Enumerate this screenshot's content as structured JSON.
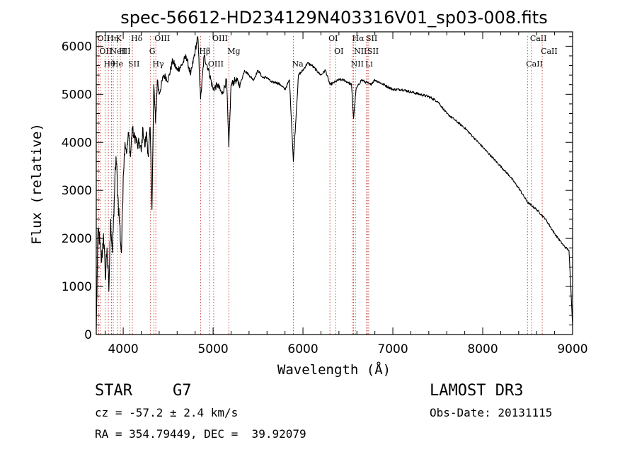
{
  "chart_data": {
    "type": "line",
    "title": "spec-56612-HD234129N403316V01_sp03-008.fits",
    "xlabel": "Wavelength (Å)",
    "ylabel": "Flux (relative)",
    "xlim": [
      3700,
      9000
    ],
    "ylim": [
      0,
      6300
    ],
    "xticks": [
      {
        "value": 4000,
        "label": "4000"
      },
      {
        "value": 5000,
        "label": "5000"
      },
      {
        "value": 6000,
        "label": "6000"
      },
      {
        "value": 7000,
        "label": "7000"
      },
      {
        "value": 8000,
        "label": "8000"
      },
      {
        "value": 9000,
        "label": "9000"
      }
    ],
    "yticks": [
      {
        "value": 0,
        "label": "0"
      },
      {
        "value": 1000,
        "label": "1000"
      },
      {
        "value": 2000,
        "label": "2000"
      },
      {
        "value": 3000,
        "label": "3000"
      },
      {
        "value": 4000,
        "label": "4000"
      },
      {
        "value": 5000,
        "label": "5000"
      },
      {
        "value": 6000,
        "label": "6000"
      }
    ],
    "series": [
      {
        "color": "#000000",
        "x": [
          3700,
          3720,
          3740,
          3760,
          3780,
          3800,
          3820,
          3840,
          3860,
          3880,
          3900,
          3920,
          3940,
          3960,
          3980,
          4000,
          4020,
          4040,
          4060,
          4080,
          4100,
          4120,
          4140,
          4160,
          4180,
          4200,
          4220,
          4240,
          4260,
          4280,
          4300,
          4320,
          4340,
          4360,
          4380,
          4400,
          4450,
          4500,
          4550,
          4600,
          4650,
          4700,
          4750,
          4800,
          4830,
          4861,
          4900,
          4950,
          5000,
          5050,
          5100,
          5150,
          5175,
          5200,
          5250,
          5300,
          5350,
          5400,
          5450,
          5500,
          5550,
          5600,
          5650,
          5700,
          5750,
          5800,
          5850,
          5893,
          5950,
          6000,
          6050,
          6100,
          6150,
          6200,
          6250,
          6300,
          6350,
          6400,
          6450,
          6500,
          6540,
          6563,
          6590,
          6650,
          6700,
          6750,
          6800,
          6850,
          6900,
          6950,
          7000,
          7100,
          7200,
          7300,
          7400,
          7500,
          7600,
          7700,
          7800,
          7900,
          8000,
          8100,
          8200,
          8300,
          8400,
          8500,
          8600,
          8700,
          8800,
          8900,
          8960,
          9000
        ],
        "y": [
          100,
          2200,
          1900,
          1500,
          2100,
          1200,
          1800,
          900,
          2400,
          1700,
          2800,
          3700,
          2900,
          2300,
          1700,
          3300,
          4000,
          3800,
          4200,
          3700,
          4300,
          4100,
          4100,
          3900,
          4000,
          3800,
          4300,
          3900,
          4200,
          3700,
          4300,
          2600,
          5200,
          4400,
          5300,
          5000,
          5400,
          5300,
          5700,
          5500,
          5600,
          5800,
          5400,
          5900,
          6200,
          4900,
          5800,
          5500,
          5100,
          5200,
          5000,
          5300,
          3900,
          5200,
          5300,
          5200,
          5500,
          5400,
          5300,
          5500,
          5350,
          5350,
          5250,
          5250,
          5200,
          5100,
          5300,
          3600,
          5400,
          5500,
          5650,
          5600,
          5500,
          5400,
          5500,
          5200,
          5250,
          5300,
          5300,
          5250,
          5200,
          4500,
          5100,
          5300,
          5250,
          5200,
          5300,
          5250,
          5200,
          5150,
          5100,
          5100,
          5050,
          5000,
          4950,
          4850,
          4600,
          4450,
          4300,
          4100,
          3900,
          3700,
          3500,
          3300,
          3050,
          2750,
          2600,
          2400,
          2100,
          1850,
          1750,
          200
        ]
      }
    ],
    "line_markers": [
      {
        "x": 3727,
        "label": "OII"
      },
      {
        "x": 3750,
        "label": "OII"
      },
      {
        "x": 3798,
        "label": "Hθ"
      },
      {
        "x": 3835,
        "label": "Hη"
      },
      {
        "x": 3869,
        "label": "NeIII"
      },
      {
        "x": 3889,
        "label": "He"
      },
      {
        "x": 3934,
        "label": "K"
      },
      {
        "x": 3968,
        "label": "H"
      },
      {
        "x": 4071,
        "label": "SII"
      },
      {
        "x": 4102,
        "label": "Hδ"
      },
      {
        "x": 4304,
        "label": "G"
      },
      {
        "x": 4341,
        "label": "Hγ"
      },
      {
        "x": 4363,
        "label": "OIII"
      },
      {
        "x": 4861,
        "label": "Hβ"
      },
      {
        "x": 4959,
        "label": "OIII"
      },
      {
        "x": 5007,
        "label": "OIII"
      },
      {
        "x": 5175,
        "label": "Mg"
      },
      {
        "x": 5893,
        "label": "Na"
      },
      {
        "x": 6300,
        "label": "OI"
      },
      {
        "x": 6363,
        "label": "OI"
      },
      {
        "x": 6548,
        "label": "NII"
      },
      {
        "x": 6563,
        "label": "Hα"
      },
      {
        "x": 6583,
        "label": "NII"
      },
      {
        "x": 6708,
        "label": "Li"
      },
      {
        "x": 6716,
        "label": "SII"
      },
      {
        "x": 6731,
        "label": "SII"
      },
      {
        "x": 8498,
        "label": "CaII"
      },
      {
        "x": 8542,
        "label": "CaII"
      },
      {
        "x": 8662,
        "label": "CaII"
      }
    ]
  },
  "info": {
    "object_class": "STAR",
    "subclass": "G7",
    "survey": "LAMOST DR3",
    "redshift": "cz = -57.2 ± 2.4 km/s",
    "obs_date": "Obs-Date: 20131115",
    "coords": "RA = 354.79449, DEC =  39.92079"
  }
}
